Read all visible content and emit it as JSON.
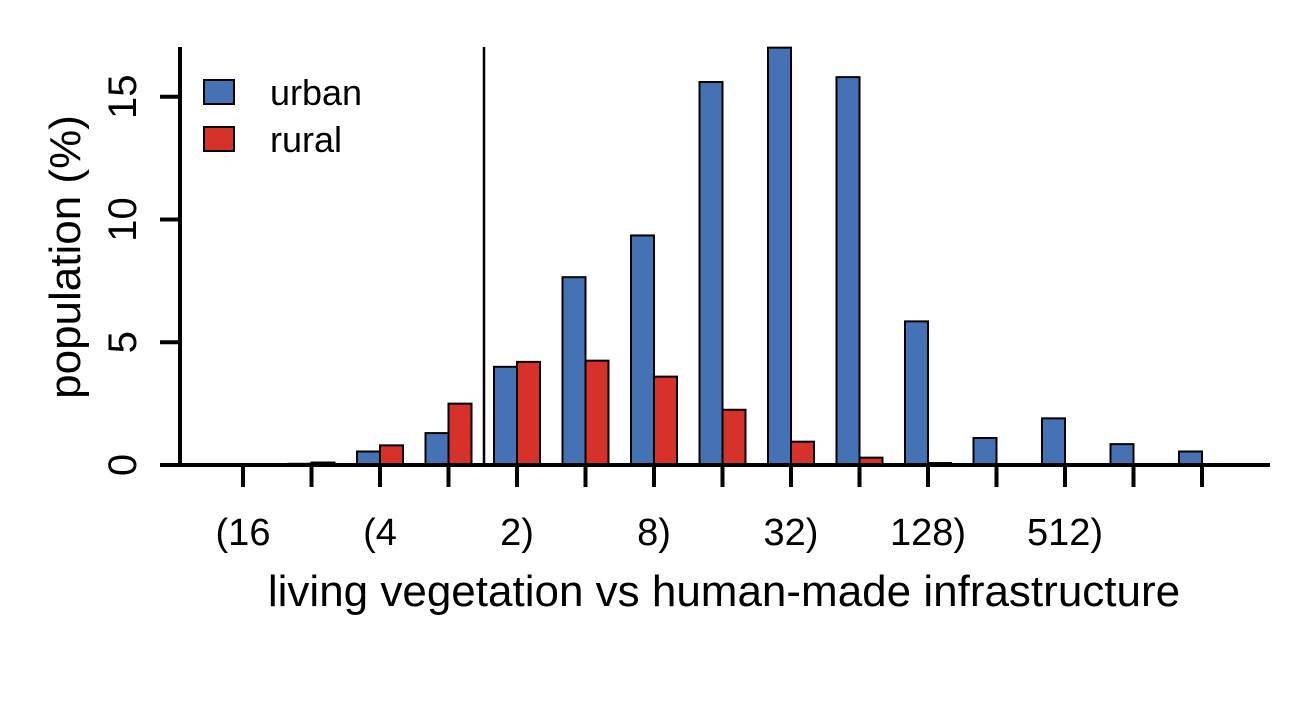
{
  "chart_data": {
    "type": "bar",
    "title": "",
    "xlabel": "living vegetation vs human-made infrastructure",
    "ylabel": "population (%)",
    "ylim": [
      0,
      17
    ],
    "yticks": [
      0,
      5,
      10,
      15
    ],
    "xtick_labels": [
      "(16",
      "(4",
      "2)",
      "8)",
      "32)",
      "128)",
      "512)"
    ],
    "category_count": 15,
    "legend_position": "top-left",
    "grid": false,
    "series": [
      {
        "name": "urban",
        "color": "#4472b4",
        "values": [
          0.0,
          0.05,
          0.55,
          1.3,
          4.0,
          7.65,
          9.35,
          15.6,
          17.0,
          15.8,
          5.85,
          1.1,
          1.9,
          0.85,
          0.55
        ]
      },
      {
        "name": "rural",
        "color": "#d7322a",
        "values": [
          0.0,
          0.1,
          0.8,
          2.5,
          4.2,
          4.25,
          3.6,
          2.25,
          0.95,
          0.3,
          0.08,
          0.03,
          0.02,
          0.02,
          0.02
        ]
      }
    ]
  }
}
